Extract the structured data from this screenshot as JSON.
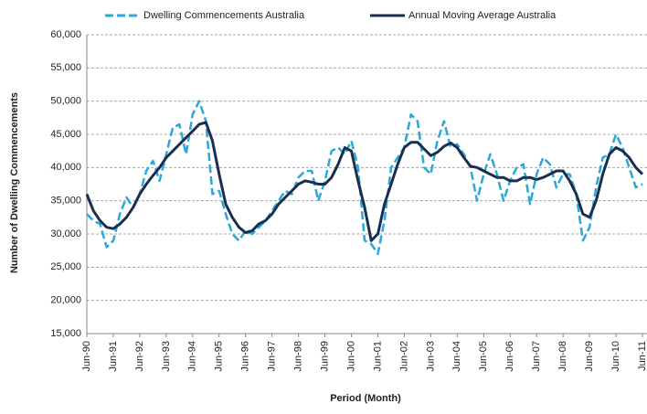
{
  "chart_data": {
    "type": "line",
    "ylabel": "Number of Dwelling Commencements",
    "xlabel": "Period (Month)",
    "categories": [
      "Jun-90",
      null,
      null,
      null,
      "Jun-91",
      null,
      null,
      null,
      "Jun-92",
      null,
      null,
      null,
      "Jun-93",
      null,
      null,
      null,
      "Jun-94",
      null,
      null,
      null,
      "Jun-95",
      null,
      null,
      null,
      "Jun-96",
      null,
      null,
      null,
      "Jun-97",
      null,
      null,
      null,
      "Jun-98",
      null,
      null,
      null,
      "Jun-99",
      null,
      null,
      null,
      "Jun-00",
      null,
      null,
      null,
      "Jun-01",
      null,
      null,
      null,
      "Jun-02",
      null,
      null,
      null,
      "Jun-03",
      null,
      null,
      null,
      "Jun-04",
      null,
      null,
      null,
      "Jun-05",
      null,
      null,
      null,
      "Jun-06",
      null,
      null,
      null,
      "Jun-07",
      null,
      null,
      null,
      "Jun-08",
      null,
      null,
      null,
      "Jun-09",
      null,
      null,
      null,
      "Jun-10",
      null,
      null,
      null,
      "Jun-11"
    ],
    "series": [
      {
        "name": "Dwelling Commencements Australia",
        "color": "#2aa8d8",
        "dashed": true,
        "values": [
          33000,
          32000,
          31500,
          28000,
          29000,
          33000,
          35500,
          34000,
          36000,
          39500,
          41000,
          38000,
          42000,
          46000,
          46500,
          42000,
          48000,
          50000,
          47000,
          36000,
          36500,
          33000,
          30000,
          29000,
          30500,
          30000,
          31000,
          32000,
          33500,
          35000,
          36500,
          36000,
          38500,
          39500,
          39500,
          35000,
          38000,
          42500,
          43000,
          42000,
          44000,
          40000,
          29000,
          28500,
          27000,
          32000,
          40000,
          41500,
          43000,
          48000,
          47000,
          40000,
          39000,
          44000,
          47000,
          43000,
          43500,
          42000,
          40000,
          35000,
          39000,
          42000,
          39000,
          35000,
          38000,
          40000,
          40500,
          34500,
          39000,
          41500,
          40500,
          37000,
          39000,
          39000,
          36000,
          29000,
          31000,
          37000,
          41500,
          42000,
          45000,
          43000,
          40000,
          37000,
          37500
        ]
      },
      {
        "name": "Annual Moving Average Australia",
        "color": "#1a2f50",
        "dashed": false,
        "values": [
          36000,
          33500,
          32000,
          31000,
          30800,
          31500,
          32500,
          34000,
          36000,
          37500,
          38800,
          40000,
          41500,
          42500,
          43500,
          44500,
          45500,
          46500,
          46800,
          44000,
          39000,
          34500,
          32500,
          31000,
          30200,
          30500,
          31500,
          32000,
          33000,
          34500,
          35500,
          36500,
          37500,
          38000,
          37800,
          37500,
          37500,
          38500,
          40500,
          43000,
          42500,
          38000,
          34000,
          29000,
          30000,
          34500,
          37500,
          40500,
          43000,
          43800,
          43800,
          42800,
          41800,
          42300,
          43200,
          43700,
          43000,
          41500,
          40200,
          40000,
          39500,
          39000,
          38500,
          38500,
          38000,
          38000,
          38500,
          38500,
          38200,
          38500,
          39000,
          39500,
          39500,
          38000,
          36000,
          33000,
          32500,
          35000,
          39000,
          42000,
          43000,
          42500,
          41500,
          40000,
          39000
        ]
      }
    ],
    "ylim": [
      15000,
      60000
    ],
    "yticks": [
      {
        "value": 15000,
        "label": "15,000"
      },
      {
        "value": 20000,
        "label": "20,000"
      },
      {
        "value": 25000,
        "label": "25,000"
      },
      {
        "value": 30000,
        "label": "30,000"
      },
      {
        "value": 35000,
        "label": "35,000"
      },
      {
        "value": 40000,
        "label": "40,000"
      },
      {
        "value": 45000,
        "label": "45,000"
      },
      {
        "value": 50000,
        "label": "50,000"
      },
      {
        "value": 55000,
        "label": "55,000"
      },
      {
        "value": 60000,
        "label": "60,000"
      }
    ],
    "grid": true,
    "legend": "top"
  }
}
